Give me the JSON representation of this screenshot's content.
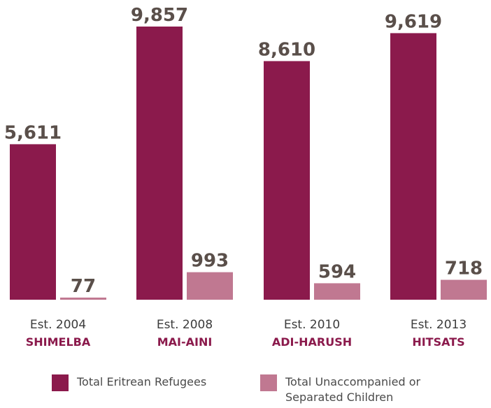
{
  "chart_data": {
    "type": "bar",
    "categories": [
      {
        "est": "Est. 2004",
        "name": "SHIMELBA"
      },
      {
        "est": "Est. 2008",
        "name": "MAI-AINI"
      },
      {
        "est": "Est. 2010",
        "name": "ADI-HARUSH"
      },
      {
        "est": "Est. 2013",
        "name": "HITSATS"
      }
    ],
    "series": [
      {
        "name": "Total Eritrean Refugees",
        "color": "#8b1a4c",
        "values": [
          5611,
          9857,
          8610,
          9619
        ],
        "labels": [
          "5,611",
          "9,857",
          "8,610",
          "9,619"
        ]
      },
      {
        "name": "Total Unaccompanied or Separated Children",
        "color": "#c07891",
        "values": [
          77,
          993,
          594,
          718
        ],
        "labels": [
          "77",
          "993",
          "594",
          "718"
        ]
      }
    ],
    "ylim": [
      0,
      10000
    ],
    "grid": false,
    "legend": "bottom"
  },
  "legend": {
    "item1": "Total Eritrean Refugees",
    "item2_line1": "Total Unaccompanied or",
    "item2_line2": "Separated Children"
  }
}
